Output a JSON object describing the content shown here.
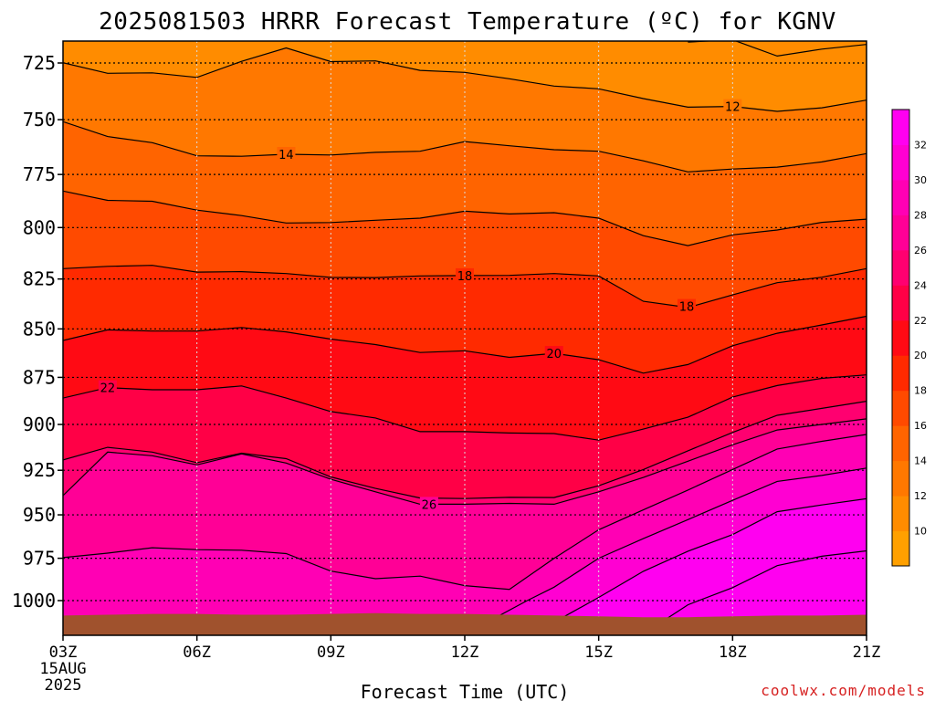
{
  "chart_data": {
    "type": "filled-contour",
    "title": "2025081503 HRRR Forecast Temperature (ºC) for KGNV",
    "xlabel": "Forecast Time (UTC)",
    "ylabel": "",
    "x_ticks": [
      "03Z",
      "06Z",
      "09Z",
      "12Z",
      "15Z",
      "18Z",
      "21Z"
    ],
    "x_first_tick_extra": [
      "15AUG",
      "2025"
    ],
    "x_hours": [
      3,
      21
    ],
    "y_ticks": [
      725,
      750,
      775,
      800,
      825,
      850,
      875,
      900,
      925,
      950,
      975,
      1000
    ],
    "ylim_hpa": [
      1013,
      713
    ],
    "grid": true,
    "colorbar": {
      "tick_labels": [
        "10",
        "12",
        "14",
        "16",
        "18",
        "20",
        "22",
        "24",
        "26",
        "28",
        "30",
        "32"
      ],
      "levels": [
        8,
        10,
        12,
        14,
        16,
        18,
        20,
        22,
        24,
        26,
        28,
        30,
        32,
        34
      ],
      "colors": [
        "#ffa000",
        "#ff8c00",
        "#ff7800",
        "#ff6400",
        "#ff4a00",
        "#ff2a00",
        "#ff0a14",
        "#ff0046",
        "#ff0070",
        "#ff0096",
        "#ff00b4",
        "#ff00d2",
        "#ff00f0"
      ]
    },
    "contours": [
      {
        "level": 10,
        "pts": [
          [
            17,
            716
          ],
          [
            18,
            715
          ],
          [
            19,
            722
          ],
          [
            20,
            719
          ],
          [
            21,
            717
          ]
        ]
      },
      {
        "level": 12,
        "pts": [
          [
            3,
            724.9
          ],
          [
            4,
            729.5
          ],
          [
            5,
            729.3
          ],
          [
            6,
            731.3
          ],
          [
            7,
            724.3
          ],
          [
            8,
            718.5
          ],
          [
            9,
            724.4
          ],
          [
            10,
            724.1
          ],
          [
            11,
            728.2
          ],
          [
            12,
            729.1
          ],
          [
            13,
            731.9
          ],
          [
            14,
            735.1
          ],
          [
            15,
            736.3
          ],
          [
            16,
            740.6
          ],
          [
            17,
            744.4
          ],
          [
            18,
            744.1
          ],
          [
            19,
            746.3
          ],
          [
            20,
            744.7
          ],
          [
            21,
            741.3
          ]
        ],
        "label": {
          "x": 18,
          "text": "12"
        }
      },
      {
        "level": 14,
        "pts": [
          [
            3,
            750.9
          ],
          [
            4,
            757.6
          ],
          [
            5,
            760.4
          ],
          [
            6,
            766.4
          ],
          [
            7,
            766.6
          ],
          [
            8,
            765.7
          ],
          [
            9,
            766.0
          ],
          [
            10,
            764.8
          ],
          [
            11,
            764.3
          ],
          [
            12,
            759.9
          ],
          [
            13,
            761.8
          ],
          [
            14,
            763.6
          ],
          [
            15,
            764.3
          ],
          [
            16,
            768.7
          ],
          [
            17,
            773.8
          ],
          [
            18,
            772.5
          ],
          [
            19,
            771.6
          ],
          [
            20,
            769.2
          ],
          [
            21,
            765.4
          ]
        ],
        "label": {
          "x": 8,
          "text": "14"
        }
      },
      {
        "level": 16,
        "pts": [
          [
            3,
            782.7
          ],
          [
            4,
            787.1
          ],
          [
            5,
            787.5
          ],
          [
            6,
            791.7
          ],
          [
            7,
            794.3
          ],
          [
            8,
            797.8
          ],
          [
            9,
            797.6
          ],
          [
            10,
            796.5
          ],
          [
            11,
            795.5
          ],
          [
            12,
            792.2
          ],
          [
            13,
            793.5
          ],
          [
            14,
            792.9
          ],
          [
            15,
            795.5
          ],
          [
            16,
            803.9
          ],
          [
            17,
            808.7
          ],
          [
            18,
            803.5
          ],
          [
            19,
            801.2
          ],
          [
            20,
            797.5
          ],
          [
            21,
            796.0
          ]
        ]
      },
      {
        "level": 18,
        "pts": [
          [
            3,
            819.9
          ],
          [
            4,
            818.8
          ],
          [
            5,
            818.3
          ],
          [
            6,
            821.6
          ],
          [
            7,
            821.4
          ],
          [
            8,
            822.3
          ],
          [
            9,
            824.2
          ],
          [
            10,
            824.3
          ],
          [
            11,
            823.5
          ],
          [
            12,
            823.3
          ],
          [
            13,
            823.2
          ],
          [
            14,
            822.3
          ],
          [
            15,
            823.5
          ],
          [
            16,
            836.1
          ],
          [
            17,
            839.2
          ],
          [
            18,
            832.9
          ],
          [
            19,
            826.8
          ],
          [
            20,
            824.1
          ],
          [
            21,
            819.9
          ]
        ],
        "label": {
          "x": 12,
          "text": "18"
        }
      },
      {
        "level": 18,
        "label_only": true,
        "pts": [
          [
            16.97,
            838.6
          ]
        ],
        "label": {
          "x": 16.97,
          "text": "18"
        }
      },
      {
        "level": 20,
        "pts": [
          [
            3,
            855.9
          ],
          [
            4,
            850.5
          ],
          [
            5,
            851.1
          ],
          [
            6,
            851.1
          ],
          [
            7,
            849.3
          ],
          [
            8,
            851.5
          ],
          [
            9,
            855.2
          ],
          [
            10,
            858.0
          ],
          [
            11,
            862.1
          ],
          [
            12,
            861.2
          ],
          [
            13,
            864.6
          ],
          [
            14,
            862.5
          ],
          [
            15,
            865.8
          ],
          [
            16,
            872.8
          ],
          [
            17,
            868.3
          ],
          [
            18,
            858.6
          ],
          [
            19,
            852.2
          ],
          [
            20,
            848.0
          ],
          [
            21,
            843.6
          ]
        ],
        "label": {
          "x": 14,
          "text": "20"
        }
      },
      {
        "level": 22,
        "pts": [
          [
            3,
            885.9
          ],
          [
            4,
            880.4
          ],
          [
            5,
            881.5
          ],
          [
            6,
            881.5
          ],
          [
            7,
            879.5
          ],
          [
            8,
            885.9
          ],
          [
            9,
            893.1
          ],
          [
            10,
            896.5
          ],
          [
            11,
            903.9
          ],
          [
            12,
            903.9
          ],
          [
            13,
            904.6
          ],
          [
            14,
            904.9
          ],
          [
            15,
            908.5
          ],
          [
            16,
            902.5
          ],
          [
            17,
            896.1
          ],
          [
            18,
            885.4
          ],
          [
            19,
            879.3
          ],
          [
            20,
            875.5
          ],
          [
            21,
            873.7
          ]
        ],
        "label": {
          "x": 4,
          "text": "22"
        }
      },
      {
        "level": 24,
        "pts": [
          [
            3,
            919.3
          ],
          [
            4,
            912.4
          ],
          [
            5,
            915.0
          ],
          [
            6,
            920.8
          ],
          [
            7,
            915.6
          ],
          [
            8,
            918.6
          ],
          [
            9,
            928.7
          ],
          [
            10,
            935.1
          ],
          [
            11,
            940.5
          ],
          [
            12,
            940.8
          ],
          [
            13,
            940.1
          ],
          [
            14,
            940.2
          ],
          [
            15,
            933.6
          ],
          [
            16,
            924.6
          ],
          [
            17,
            914.3
          ],
          [
            18,
            904.3
          ],
          [
            19,
            895.1
          ],
          [
            20,
            891.4
          ],
          [
            21,
            887.6
          ]
        ]
      },
      {
        "level": 26,
        "pts": [
          [
            3,
            939.1
          ],
          [
            4,
            915.0
          ],
          [
            5,
            917.0
          ],
          [
            6,
            922.0
          ],
          [
            7,
            916.0
          ],
          [
            8,
            921.0
          ],
          [
            9,
            930.0
          ],
          [
            10,
            937.0
          ],
          [
            11,
            944.0
          ],
          [
            12,
            944.0
          ],
          [
            13,
            943.5
          ],
          [
            14,
            944.0
          ],
          [
            15,
            937.0
          ],
          [
            16,
            929.0
          ],
          [
            17,
            920.0
          ],
          [
            18,
            911.0
          ],
          [
            19,
            903.0
          ],
          [
            20,
            900.0
          ],
          [
            21,
            897.0
          ]
        ],
        "label": {
          "x": 11.2,
          "text": "26"
        }
      },
      {
        "level": 28,
        "pts": [
          [
            3,
            974.6
          ],
          [
            4,
            972.0
          ],
          [
            5,
            968.9
          ],
          [
            6,
            970.0
          ],
          [
            7,
            970.3
          ],
          [
            8,
            972.3
          ],
          [
            9,
            982.5
          ],
          [
            10,
            987.0
          ],
          [
            11,
            985.5
          ],
          [
            12,
            991.1
          ],
          [
            13,
            993.3
          ],
          [
            14,
            975.1
          ],
          [
            15,
            958.5
          ],
          [
            16,
            947.2
          ],
          [
            17,
            936.0
          ],
          [
            18,
            924.6
          ],
          [
            19,
            913.3
          ],
          [
            20,
            909.1
          ],
          [
            21,
            905.4
          ]
        ]
      },
      {
        "level": 30,
        "pts": [
          [
            12.5,
            1013
          ],
          [
            13.4,
            1000
          ],
          [
            14,
            992.0
          ],
          [
            15,
            975.0
          ],
          [
            16,
            963.6
          ],
          [
            17,
            952.7
          ],
          [
            18,
            941.8
          ],
          [
            19,
            931.2
          ],
          [
            20,
            927.9
          ],
          [
            21,
            923.8
          ]
        ]
      },
      {
        "level": 32,
        "pts": [
          [
            14.0,
            1013
          ],
          [
            15,
            998.1
          ],
          [
            16,
            982.6
          ],
          [
            17,
            970.9
          ],
          [
            18,
            961.3
          ],
          [
            19,
            948.2
          ],
          [
            20,
            944.4
          ],
          [
            21,
            940.9
          ]
        ]
      },
      {
        "level": 34,
        "pts": [
          [
            16.4,
            1013
          ],
          [
            17,
            1002.5
          ],
          [
            18,
            992.3
          ],
          [
            19,
            979.3
          ],
          [
            20,
            973.8
          ],
          [
            21,
            970.7
          ]
        ]
      }
    ],
    "surface_hpa": [
      1009,
      1008.5,
      1008,
      1008,
      1008.5,
      1008.5,
      1008,
      1007.5,
      1008,
      1008,
      1008.5,
      1009,
      1009.5,
      1010,
      1010,
      1009.5,
      1009,
      1009,
      1008.5
    ]
  },
  "footer": {
    "credit": "coolwx.com/models"
  }
}
